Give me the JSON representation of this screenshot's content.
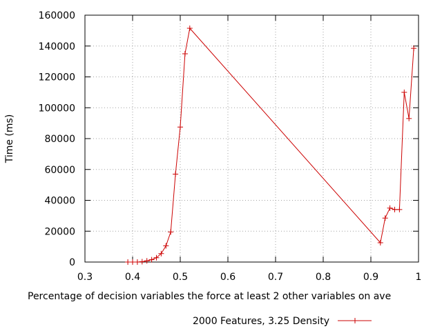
{
  "chart_data": {
    "type": "line",
    "title": "",
    "xlabel": "Percentage of decision variables the force at least 2 other variables on ave",
    "ylabel": "Time (ms)",
    "xlim": [
      0.3,
      1.0
    ],
    "ylim": [
      0,
      160000
    ],
    "x_ticks": [
      "0.3",
      "0.4",
      "0.5",
      "0.6",
      "0.7",
      "0.8",
      "0.9",
      "1"
    ],
    "y_ticks": [
      "0",
      "20000",
      "40000",
      "60000",
      "80000",
      "100000",
      "120000",
      "140000",
      "160000"
    ],
    "grid": true,
    "legend_position": "bottom-center",
    "series": [
      {
        "name": "2000 Features, 3.25 Density",
        "color": "#cc0000",
        "marker": "plus",
        "x": [
          0.39,
          0.4,
          0.41,
          0.42,
          0.43,
          0.44,
          0.45,
          0.46,
          0.47,
          0.48,
          0.49,
          0.5,
          0.51,
          0.52,
          0.92,
          0.93,
          0.94,
          0.95,
          0.96,
          0.97,
          0.98,
          0.99
        ],
        "y": [
          0,
          0,
          0,
          200,
          800,
          1500,
          2800,
          5500,
          10500,
          19500,
          57000,
          87500,
          135000,
          151500,
          12500,
          28500,
          35000,
          34000,
          34000,
          110000,
          93000,
          138500
        ]
      }
    ]
  }
}
